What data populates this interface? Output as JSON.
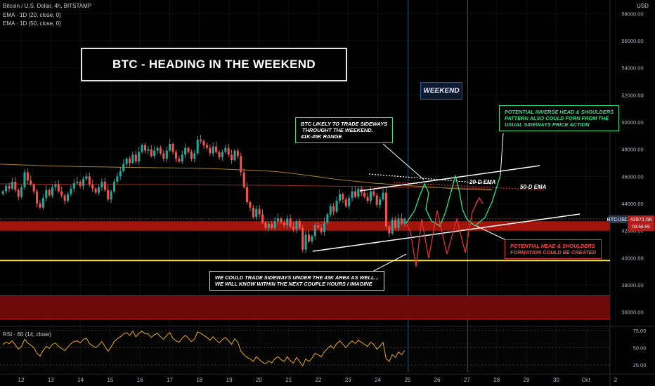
{
  "header": {
    "symbol_line": "Bitcoin / U.S. Dollar, 4h, BITSTAMP",
    "ema20_line": "EMA · 1D (20, close, 0)",
    "ema50_line": "EMA · 1D (50, close, 0)",
    "currency": "USD",
    "rsi_label": "RSI · 60 (14, close)"
  },
  "annotations": {
    "title": "BTC - HEADING IN THE WEEKEND",
    "weekend": "WEEKEND",
    "sideways_note": [
      "BTC LIKELY TO TRADE SIDEWAYS",
      " THROUGHT THE WEEKEND.",
      "41K-45K RANGE"
    ],
    "inverse_hs_note": [
      "POTENTIAL INVERSE HEAD & SHOULDERS",
      "PATTERN ALSO COULD FORN FROM THE",
      "USUAL SIDEWAYS PRICE ACTION"
    ],
    "hs_note": [
      "POTENTIAL HEAD & SHOULDERS",
      "FORMATION COULD BE CREATED"
    ],
    "under_note": [
      "WE COULD TRADE SIDEWAYS UNDER THE 43K AREA AS WELL...",
      "WE WILL KNOW WITHIN THE NEXT COUPLE HOURS I IMAGINE"
    ],
    "ema20_label": "20-D EMA",
    "ema50_label": "50-D EMA"
  },
  "price_tags": {
    "symbol": "BTCUSD",
    "last_price": "42871.56",
    "countdown": "03:56:59"
  },
  "colors": {
    "up": "#26a69a",
    "down": "#ef5350",
    "ema20": "#d4a32a",
    "ema50": "#c0392b",
    "rsi": "#e6a817",
    "support_zone": "#c0180c",
    "yellow_line": "#ffeb3b",
    "bull_path": "#2ce58b",
    "bear_path": "#e03434"
  },
  "chart_data": [
    {
      "type": "candlestick",
      "x_ticks": [
        "12",
        "13",
        "14",
        "15",
        "16",
        "17",
        "18",
        "19",
        "20",
        "21",
        "22",
        "23",
        "24",
        "25",
        "26",
        "27",
        "28",
        "29",
        "30",
        "Oct",
        "2"
      ],
      "y_ticks": [
        36000,
        38000,
        40000,
        42000,
        44000,
        46000,
        48000,
        50000,
        52000,
        54000,
        56000,
        58000
      ],
      "y_tick_labels": [
        "36000.00",
        "38000.00",
        "40000.00",
        "42000.00",
        "44000.00",
        "46000.00",
        "48000.00",
        "50000.00",
        "52000.00",
        "54000.00",
        "56000.00",
        "58000.00"
      ],
      "ylim": [
        35000,
        59000
      ],
      "closes": [
        44900,
        45300,
        45100,
        45600,
        45000,
        44500,
        45200,
        46300,
        45700,
        45400,
        44900,
        44000,
        43700,
        44400,
        45000,
        44600,
        45200,
        45400,
        44900,
        44600,
        44200,
        44700,
        45100,
        45500,
        45600,
        45300,
        45800,
        46000,
        45400,
        45100,
        44800,
        45200,
        45600,
        45000,
        44300,
        44900,
        45600,
        46000,
        46400,
        46900,
        47300,
        47000,
        47600,
        47100,
        47800,
        48300,
        47900,
        48000,
        47500,
        47900,
        48100,
        47700,
        47300,
        47900,
        48400,
        47800,
        47300,
        47100,
        47600,
        48100,
        47800,
        47300,
        47700,
        48700,
        48600,
        48300,
        48100,
        47700,
        48200,
        47800,
        47400,
        47800,
        48100,
        47600,
        47200,
        47900,
        47500,
        46300,
        45200,
        44100,
        43700,
        43000,
        43600,
        43200,
        42600,
        42200,
        42500,
        42200,
        42700,
        42900,
        42600,
        42400,
        42900,
        42300,
        42100,
        42700,
        42200,
        40600,
        41700,
        41200,
        41600,
        42400,
        42200,
        41900,
        42600,
        43200,
        43800,
        43400,
        44200,
        44700,
        44300,
        43800,
        44400,
        44900,
        44500,
        45100,
        44800,
        44500,
        44200,
        44900,
        44600,
        43900,
        44300,
        44800,
        42300,
        41800,
        42800,
        42200,
        42900,
        42500,
        42871
      ],
      "ema20": [
        46900,
        46850,
        46800,
        46760,
        46720,
        46700,
        46680,
        46660,
        46640,
        46620,
        46600,
        46560,
        46500,
        46440,
        46360,
        46200,
        46000,
        45800,
        45650,
        45500,
        45400,
        45300,
        45200,
        45100,
        45050,
        45000
      ],
      "ema50": [
        45450,
        45440,
        45430,
        45420,
        45410,
        45400,
        45400,
        45400,
        45400,
        45390,
        45380,
        45370,
        45360,
        45350,
        45340,
        45320,
        45300,
        45280,
        45260,
        45240,
        45220,
        45200,
        45180,
        45150,
        45120,
        45050
      ],
      "support_zone": [
        42000,
        42700
      ],
      "resistance_lines": [
        39800
      ],
      "lower_zone": [
        35500,
        37200
      ],
      "last_price": 42871.56
    },
    {
      "type": "line",
      "title": "RSI · 60 (14, close)",
      "y_ticks": [
        25,
        50,
        75
      ],
      "y_tick_labels": [
        "25.00",
        "50.00",
        "75.00"
      ],
      "ylim": [
        15,
        80
      ],
      "values": [
        55,
        58,
        56,
        60,
        54,
        48,
        52,
        62,
        57,
        54,
        50,
        42,
        38,
        46,
        52,
        49,
        55,
        57,
        52,
        49,
        46,
        51,
        56,
        59,
        60,
        57,
        62,
        64,
        56,
        53,
        50,
        54,
        59,
        52,
        45,
        51,
        59,
        63,
        66,
        70,
        72,
        68,
        74,
        66,
        71,
        74,
        70,
        70,
        65,
        69,
        71,
        66,
        62,
        68,
        72,
        64,
        60,
        58,
        64,
        68,
        64,
        59,
        63,
        73,
        71,
        68,
        65,
        61,
        66,
        61,
        57,
        62,
        65,
        60,
        55,
        63,
        58,
        45,
        40,
        36,
        34,
        30,
        37,
        33,
        29,
        27,
        31,
        28,
        34,
        37,
        33,
        30,
        37,
        31,
        28,
        36,
        30,
        24,
        34,
        30,
        35,
        42,
        40,
        37,
        44,
        49,
        53,
        49,
        56,
        60,
        55,
        50,
        56,
        60,
        56,
        61,
        58,
        55,
        52,
        58,
        55,
        48,
        52,
        58,
        34,
        30,
        40,
        36,
        44,
        40,
        46
      ]
    }
  ]
}
